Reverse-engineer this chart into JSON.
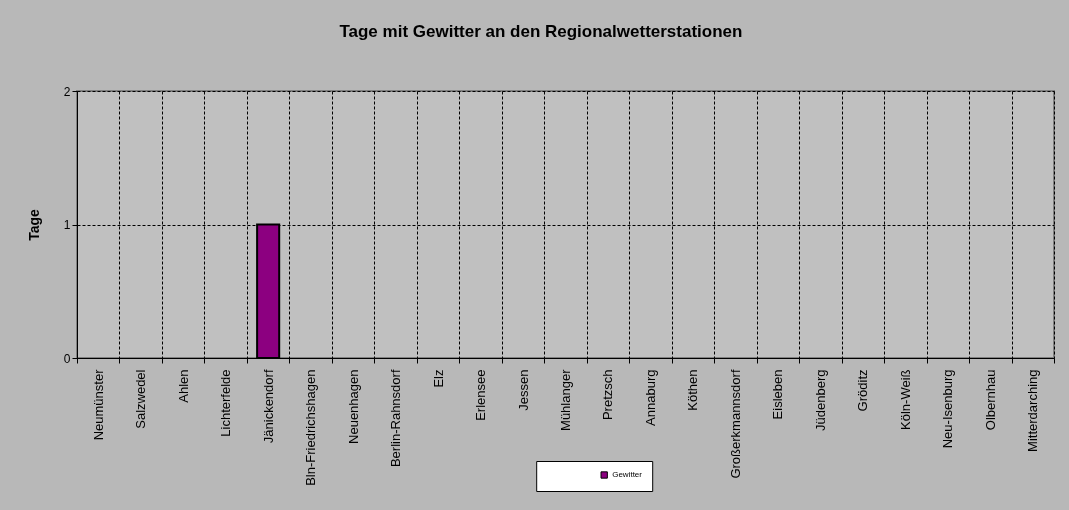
{
  "chart_data": {
    "type": "bar",
    "title": "Tage mit Gewitter an den Regionalwetterstationen",
    "ylabel": "Tage",
    "categories": [
      "Neumünster",
      "Salzwedel",
      "Ahlen",
      "Lichterfelde",
      "Jänickendorf",
      "Bln-Friedrichshagen",
      "Neuenhagen",
      "Berlin-Rahnsdorf",
      "Elz",
      "Erlensee",
      "Jessen",
      "Mühlanger",
      "Pretzsch",
      "Annaburg",
      "Köthen",
      "Großerkmannsdorf",
      "Eisleben",
      "Jüdenberg",
      "Gröditz",
      "Köln-Weiß",
      "Neu-Isenburg",
      "Olbernhau",
      "Mitterdarching"
    ],
    "series": [
      {
        "name": "Gewitter",
        "color": "#8c0080",
        "values": [
          0,
          0,
          0,
          0,
          1,
          0,
          0,
          0,
          0,
          0,
          0,
          0,
          0,
          0,
          0,
          0,
          0,
          0,
          0,
          0,
          0,
          0,
          0
        ]
      }
    ],
    "ylim": [
      0,
      2
    ],
    "yticks": [
      0,
      1,
      2
    ],
    "grid": true,
    "legend": "bottom"
  }
}
